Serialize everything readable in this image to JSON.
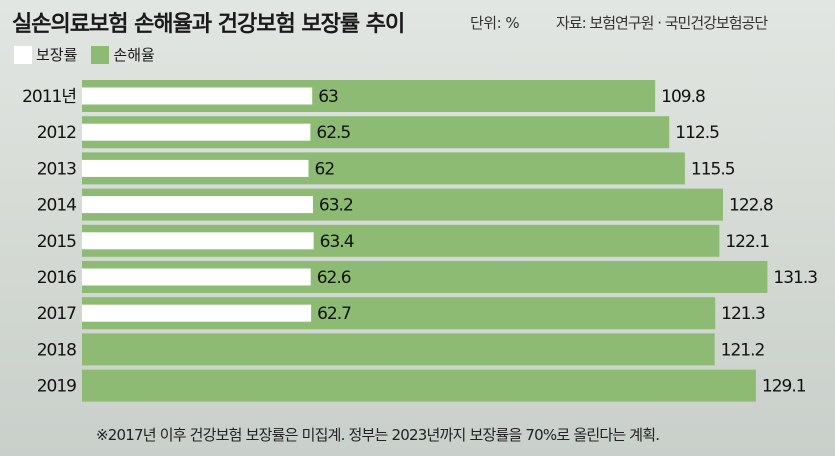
{
  "title": "실손의료보험 손해율과 건강보험 보장률 추이",
  "unit": "단위: %",
  "source": "자료: 보험연구원 · 국민건강보험공단",
  "footnote": "※2017년 이후 건강보험 보장률은 미집계. 정부는 2023년까지 보장률을 70%로 올린다는 계획.",
  "colors": {
    "coverage": "#ffffff",
    "loss": "#8dbb73"
  },
  "chart_data": {
    "type": "bar",
    "orientation": "horizontal",
    "categories": [
      "2011년",
      "2012",
      "2013",
      "2014",
      "2015",
      "2016",
      "2017",
      "2018",
      "2019"
    ],
    "series": [
      {
        "name": "보장률",
        "values": [
          63,
          62.5,
          62,
          63.2,
          63.4,
          62.6,
          62.7,
          null,
          null
        ],
        "labels": [
          "63",
          "62.5",
          "62",
          "63.2",
          "63.4",
          "62.6",
          "62.7",
          "",
          ""
        ]
      },
      {
        "name": "손해율",
        "values": [
          109.8,
          112.5,
          115.5,
          122.8,
          122.1,
          131.3,
          121.3,
          121.2,
          129.1
        ],
        "labels": [
          "109.8",
          "112.5",
          "115.5",
          "122.8",
          "122.1",
          "131.3",
          "121.3",
          "121.2",
          "129.1"
        ]
      }
    ],
    "legend": "top-left",
    "grid": false
  }
}
